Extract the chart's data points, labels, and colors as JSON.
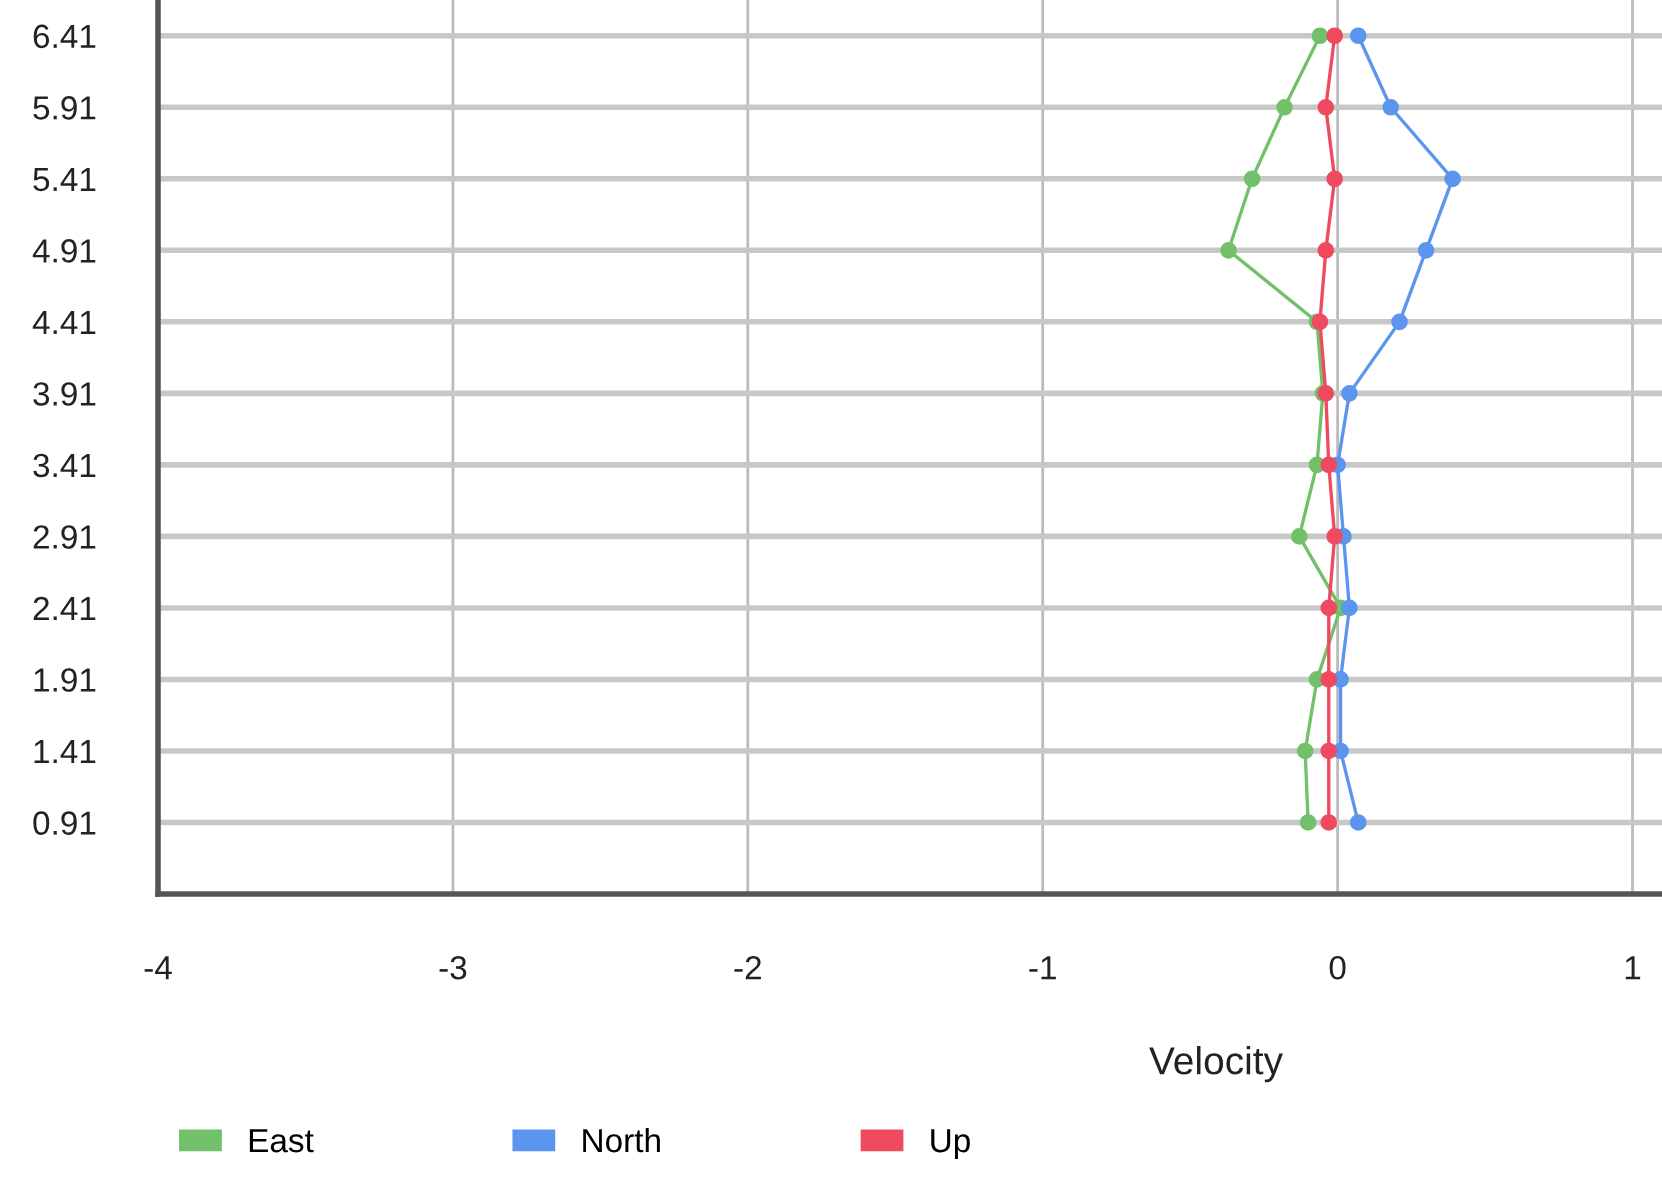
{
  "chart_data": {
    "type": "line",
    "orientation": "horizontal",
    "xlabel": "Velocity",
    "categories": [
      "6.41",
      "5.91",
      "5.41",
      "4.91",
      "4.41",
      "3.91",
      "3.41",
      "2.91",
      "2.41",
      "1.91",
      "1.41",
      "0.91"
    ],
    "series": [
      {
        "name": "East",
        "color": "#73c06b",
        "values": [
          -0.06,
          -0.18,
          -0.29,
          -0.37,
          -0.07,
          -0.05,
          -0.07,
          -0.13,
          0.01,
          -0.07,
          -0.11,
          -0.1
        ]
      },
      {
        "name": "North",
        "color": "#5b95f0",
        "values": [
          0.07,
          0.18,
          0.39,
          0.3,
          0.21,
          0.04,
          0.0,
          0.02,
          0.04,
          0.01,
          0.01,
          0.07
        ]
      },
      {
        "name": "Up",
        "color": "#ef4a5f",
        "values": [
          -0.01,
          -0.04,
          -0.01,
          -0.04,
          -0.06,
          -0.04,
          -0.03,
          -0.01,
          -0.03,
          -0.03,
          -0.03,
          -0.03
        ]
      }
    ],
    "xlim": [
      -4,
      1.1
    ],
    "xticks": [
      -4,
      -3,
      -2,
      -1,
      0,
      1
    ],
    "grid": true,
    "legend": "bottom",
    "marker": "circle",
    "line_style": "solid"
  }
}
